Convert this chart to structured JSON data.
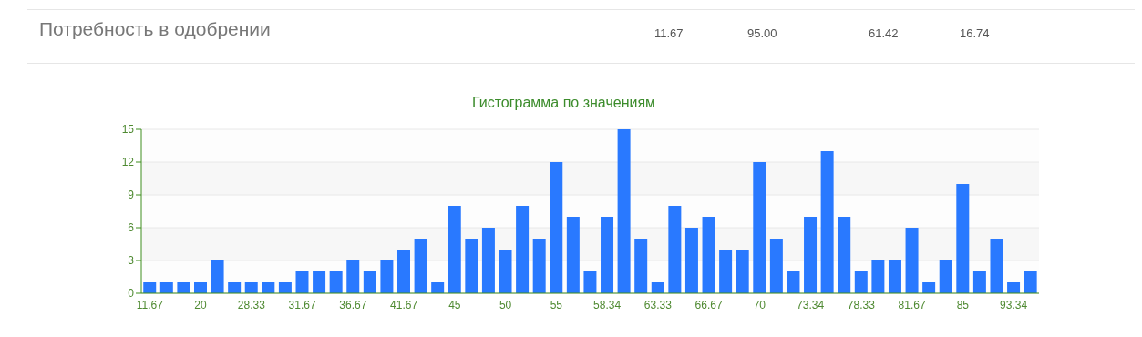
{
  "chart_data": {
    "type": "bar",
    "title": "Гистограмма по значениям",
    "annotations": [
      "Потребность в одобрении",
      "11.67",
      "95.00",
      "61.42",
      "16.74"
    ],
    "categories": [
      "11.67",
      null,
      null,
      "20",
      null,
      null,
      "28.33",
      null,
      null,
      "31.67",
      null,
      null,
      "36.67",
      null,
      null,
      "41.67",
      null,
      null,
      "45",
      null,
      null,
      "50",
      null,
      null,
      "55",
      null,
      null,
      "58.34",
      null,
      null,
      "63.33",
      null,
      null,
      "66.67",
      null,
      null,
      "70",
      null,
      null,
      "73.34",
      null,
      null,
      "78.33",
      null,
      null,
      "81.67",
      null,
      null,
      "85",
      null,
      null,
      "93.34",
      null
    ],
    "values": [
      1,
      1,
      1,
      1,
      3,
      1,
      1,
      1,
      1,
      2,
      2,
      2,
      3,
      2,
      3,
      4,
      5,
      1,
      8,
      5,
      6,
      4,
      8,
      5,
      12,
      7,
      2,
      7,
      15,
      5,
      1,
      8,
      6,
      7,
      4,
      4,
      12,
      5,
      2,
      7,
      13,
      7,
      2,
      3,
      3,
      6,
      1,
      3,
      10,
      2,
      5,
      1,
      2
    ],
    "color": "#2979ff",
    "ylim": [
      0,
      15
    ],
    "yticks": [
      0,
      3,
      6,
      9,
      12,
      15
    ],
    "grid": "y"
  }
}
